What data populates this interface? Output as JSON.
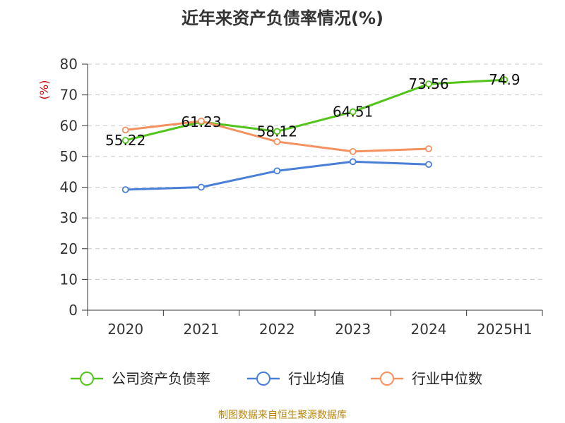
{
  "title": "近年来资产负债率情况(%)",
  "footer": "制图数据来自恒生聚源数据库",
  "chart_data": {
    "type": "line",
    "title": "近年来资产负债率情况(%)",
    "ylabel": "(%)",
    "xlabel": "",
    "categories": [
      "2020",
      "2021",
      "2022",
      "2023",
      "2024",
      "2025H1"
    ],
    "ylim": [
      0,
      80
    ],
    "yticks": [
      0,
      10,
      20,
      30,
      40,
      50,
      60,
      70,
      80
    ],
    "grid": true,
    "legend_position": "bottom",
    "series": [
      {
        "name": "公司资产负债率",
        "color": "#52c41a",
        "values": [
          55.22,
          61.23,
          58.12,
          64.51,
          73.56,
          74.9
        ],
        "labels": [
          "55.22",
          "61.23",
          "58.12",
          "64.51",
          "73.56",
          "74.9"
        ]
      },
      {
        "name": "行业均值",
        "color": "#4a7fd8",
        "values": [
          39.2,
          40.0,
          45.3,
          48.3,
          47.4,
          null
        ]
      },
      {
        "name": "行业中位数",
        "color": "#f4915f",
        "values": [
          58.6,
          61.5,
          54.8,
          51.6,
          52.5,
          null
        ]
      }
    ]
  }
}
